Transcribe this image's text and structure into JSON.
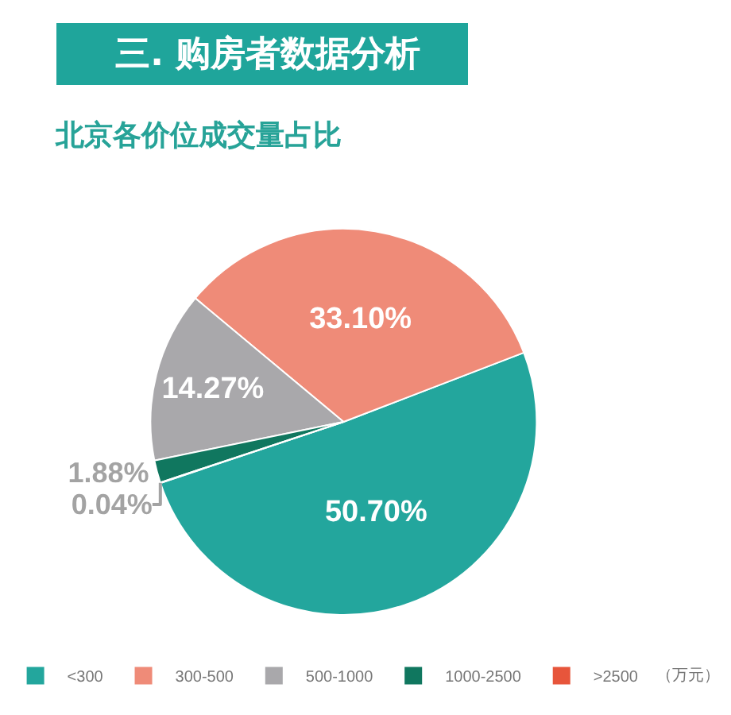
{
  "chart_data": {
    "type": "pie",
    "title": "三. 购房者数据分析",
    "subtitle": "北京各价位成交量占比",
    "categories": [
      "<300",
      "300-500",
      "500-1000",
      "1000-2500",
      ">2500"
    ],
    "values": [
      50.7,
      33.1,
      14.27,
      1.88,
      0.04
    ],
    "colors": [
      "#23a69d",
      "#ef8b78",
      "#a9a8ab",
      "#10775f",
      "#e7553b"
    ],
    "value_labels": [
      "50.70%",
      "33.10%",
      "14.27%",
      "1.88%",
      "0.04%"
    ],
    "legend": "bottom",
    "annotations": [
      "（万元）"
    ]
  }
}
